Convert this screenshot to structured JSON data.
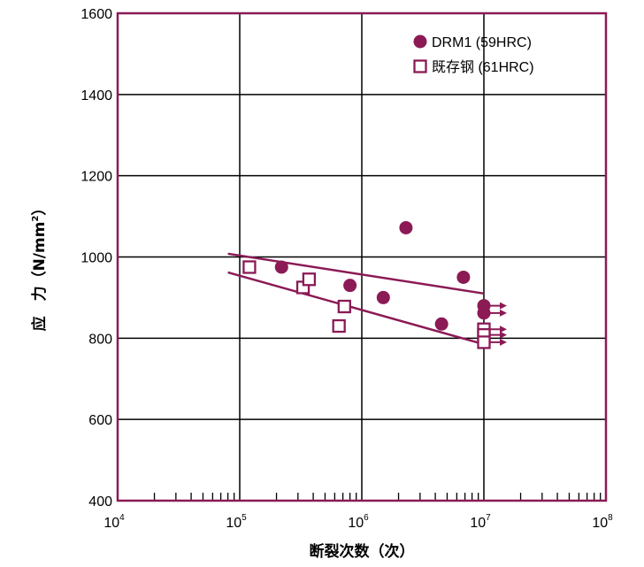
{
  "chart_data": {
    "type": "scatter",
    "xscale": "log",
    "xlim": [
      10000,
      100000000
    ],
    "ylim": [
      400,
      1600
    ],
    "x_tick_labels": [
      {
        "base": "10",
        "exp": "4",
        "value": 10000
      },
      {
        "base": "10",
        "exp": "5",
        "value": 100000
      },
      {
        "base": "10",
        "exp": "6",
        "value": 1000000
      },
      {
        "base": "10",
        "exp": "7",
        "value": 10000000
      },
      {
        "base": "10",
        "exp": "8",
        "value": 100000000
      }
    ],
    "y_ticks": [
      400,
      600,
      800,
      1000,
      1200,
      1400,
      1600
    ],
    "y_tick_labels": [
      "400",
      "600",
      "800",
      "1000",
      "1200",
      "1400",
      "1600"
    ],
    "xlabel": "断裂次数（次）",
    "ylabel": "应　力（N/mm²）",
    "ylabel_parts": {
      "main": "应　力（N/mm",
      "sup": "2",
      "end": "）"
    },
    "grid": true,
    "legend_position": "top-right",
    "series": [
      {
        "name": "DRM1 (59HRC)",
        "marker": "filled-circle",
        "color": "#8b1a55",
        "points": [
          {
            "x": 220000,
            "y": 975
          },
          {
            "x": 800000,
            "y": 930
          },
          {
            "x": 1500000,
            "y": 900
          },
          {
            "x": 2300000,
            "y": 1072
          },
          {
            "x": 4500000,
            "y": 835
          },
          {
            "x": 6800000,
            "y": 950
          },
          {
            "x": 10000000,
            "y": 880,
            "runout": true
          },
          {
            "x": 10000000,
            "y": 862,
            "runout": true
          }
        ],
        "trend": {
          "x": [
            80000,
            10000000
          ],
          "y": [
            1008,
            910
          ]
        }
      },
      {
        "name": "既存钢 (61HRC)",
        "marker": "open-square",
        "color": "#8b1a55",
        "points": [
          {
            "x": 120000,
            "y": 975
          },
          {
            "x": 330000,
            "y": 925
          },
          {
            "x": 370000,
            "y": 945
          },
          {
            "x": 650000,
            "y": 830
          },
          {
            "x": 720000,
            "y": 878
          },
          {
            "x": 10000000,
            "y": 822,
            "runout": true
          },
          {
            "x": 10000000,
            "y": 808,
            "runout": true
          },
          {
            "x": 10000000,
            "y": 790,
            "runout": true
          }
        ],
        "trend": {
          "x": [
            80000,
            10000000
          ],
          "y": [
            962,
            785
          ]
        }
      }
    ]
  }
}
